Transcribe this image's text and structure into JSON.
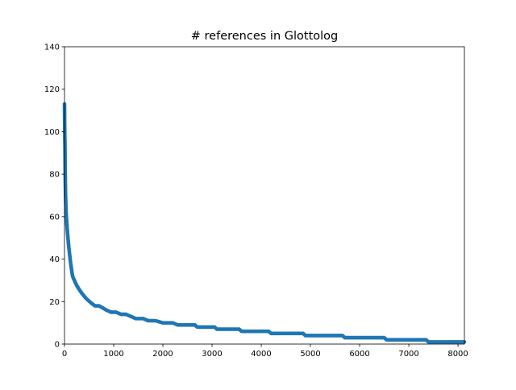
{
  "chart_data": {
    "type": "scatter",
    "title": "# references in Glottolog",
    "xlabel": "",
    "ylabel": "",
    "xlim": [
      0,
      8130
    ],
    "ylim": [
      0,
      140
    ],
    "xticks": [
      0,
      1000,
      2000,
      3000,
      4000,
      5000,
      6000,
      7000,
      8000
    ],
    "yticks": [
      0,
      20,
      40,
      60,
      80,
      100,
      120,
      140
    ],
    "grid": false,
    "legend": "none",
    "series": [
      {
        "color": "#1f77b4",
        "points": [
          [
            0,
            113
          ],
          [
            3,
            104
          ],
          [
            6,
            98
          ],
          [
            9,
            94
          ],
          [
            12,
            86
          ],
          [
            15,
            80
          ],
          [
            18,
            74
          ],
          [
            22,
            70
          ],
          [
            27,
            66
          ],
          [
            32,
            62
          ],
          [
            38,
            60
          ],
          [
            44,
            58
          ],
          [
            50,
            56
          ],
          [
            56,
            54
          ],
          [
            63,
            52
          ],
          [
            70,
            50
          ],
          [
            78,
            48
          ],
          [
            86,
            46
          ],
          [
            95,
            44
          ],
          [
            105,
            42
          ],
          [
            115,
            40
          ],
          [
            125,
            38
          ],
          [
            138,
            36
          ],
          [
            150,
            34
          ],
          [
            165,
            32
          ],
          [
            180,
            31
          ],
          [
            200,
            30
          ],
          [
            220,
            29
          ],
          [
            240,
            28
          ],
          [
            265,
            27
          ],
          [
            290,
            26
          ],
          [
            320,
            25
          ],
          [
            350,
            24
          ],
          [
            385,
            23
          ],
          [
            420,
            22
          ],
          [
            460,
            21
          ],
          [
            510,
            20
          ],
          [
            560,
            19
          ],
          [
            620,
            18
          ],
          [
            700,
            18
          ],
          [
            780,
            17
          ],
          [
            850,
            16
          ],
          [
            950,
            15
          ],
          [
            1050,
            15
          ],
          [
            1150,
            14
          ],
          [
            1250,
            14
          ],
          [
            1350,
            13
          ],
          [
            1450,
            12
          ],
          [
            1600,
            12
          ],
          [
            1700,
            11
          ],
          [
            1850,
            11
          ],
          [
            2000,
            10
          ],
          [
            2200,
            10
          ],
          [
            2300,
            9
          ],
          [
            2500,
            9
          ],
          [
            2650,
            9
          ],
          [
            2700,
            8
          ],
          [
            2900,
            8
          ],
          [
            3050,
            8
          ],
          [
            3100,
            7
          ],
          [
            3300,
            7
          ],
          [
            3550,
            7
          ],
          [
            3600,
            6
          ],
          [
            3900,
            6
          ],
          [
            4150,
            6
          ],
          [
            4200,
            5
          ],
          [
            4500,
            5
          ],
          [
            4850,
            5
          ],
          [
            4900,
            4
          ],
          [
            5300,
            4
          ],
          [
            5650,
            4
          ],
          [
            5700,
            3
          ],
          [
            6100,
            3
          ],
          [
            6500,
            3
          ],
          [
            6550,
            2
          ],
          [
            7000,
            2
          ],
          [
            7350,
            2
          ],
          [
            7400,
            1
          ],
          [
            7800,
            1
          ],
          [
            8130,
            1
          ]
        ]
      }
    ]
  }
}
